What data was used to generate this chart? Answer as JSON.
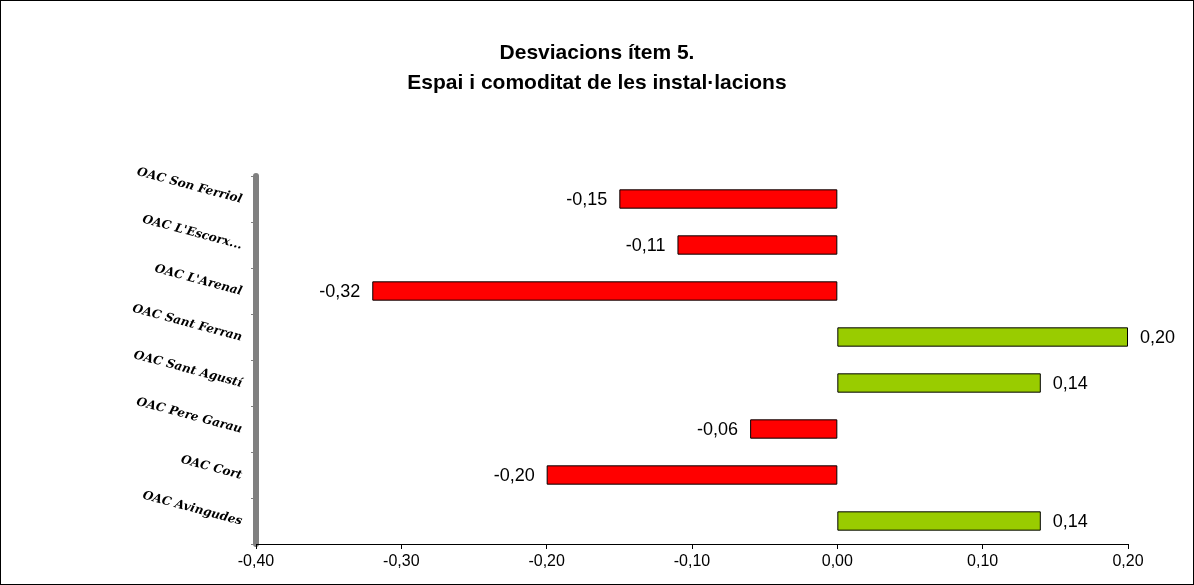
{
  "chart_data": {
    "type": "bar",
    "orientation": "horizontal",
    "title": "Desviacions ítem 5.\nEspai i comoditat de les instal·lacions",
    "categories": [
      "OAC Son Ferriol",
      "OAC L'Escorx...",
      "OAC L'Arenal",
      "OAC Sant Ferran",
      "OAC Sant Agustí",
      "OAC Pere Garau",
      "OAC Cort",
      "OAC Avingudes"
    ],
    "values": [
      -0.15,
      -0.11,
      -0.32,
      0.2,
      0.14,
      -0.06,
      -0.2,
      0.14
    ],
    "value_labels": [
      "-0,15",
      "-0,11",
      "-0,32",
      "0,20",
      "0,14",
      "-0,06",
      "-0,20",
      "0,14"
    ],
    "colors": [
      "#ff0000",
      "#ff0000",
      "#ff0000",
      "#99cc00",
      "#99cc00",
      "#ff0000",
      "#ff0000",
      "#99cc00"
    ],
    "xlim": [
      -0.4,
      0.2
    ],
    "xticks": [
      {
        "value": -0.4,
        "label": "-0,40"
      },
      {
        "value": -0.3,
        "label": "-0,30"
      },
      {
        "value": -0.2,
        "label": "-0,20"
      },
      {
        "value": -0.1,
        "label": "-0,10"
      },
      {
        "value": 0,
        "label": "0,00"
      },
      {
        "value": 0.1,
        "label": "0,10"
      },
      {
        "value": 0.2,
        "label": "0,20"
      }
    ],
    "grid": false
  }
}
